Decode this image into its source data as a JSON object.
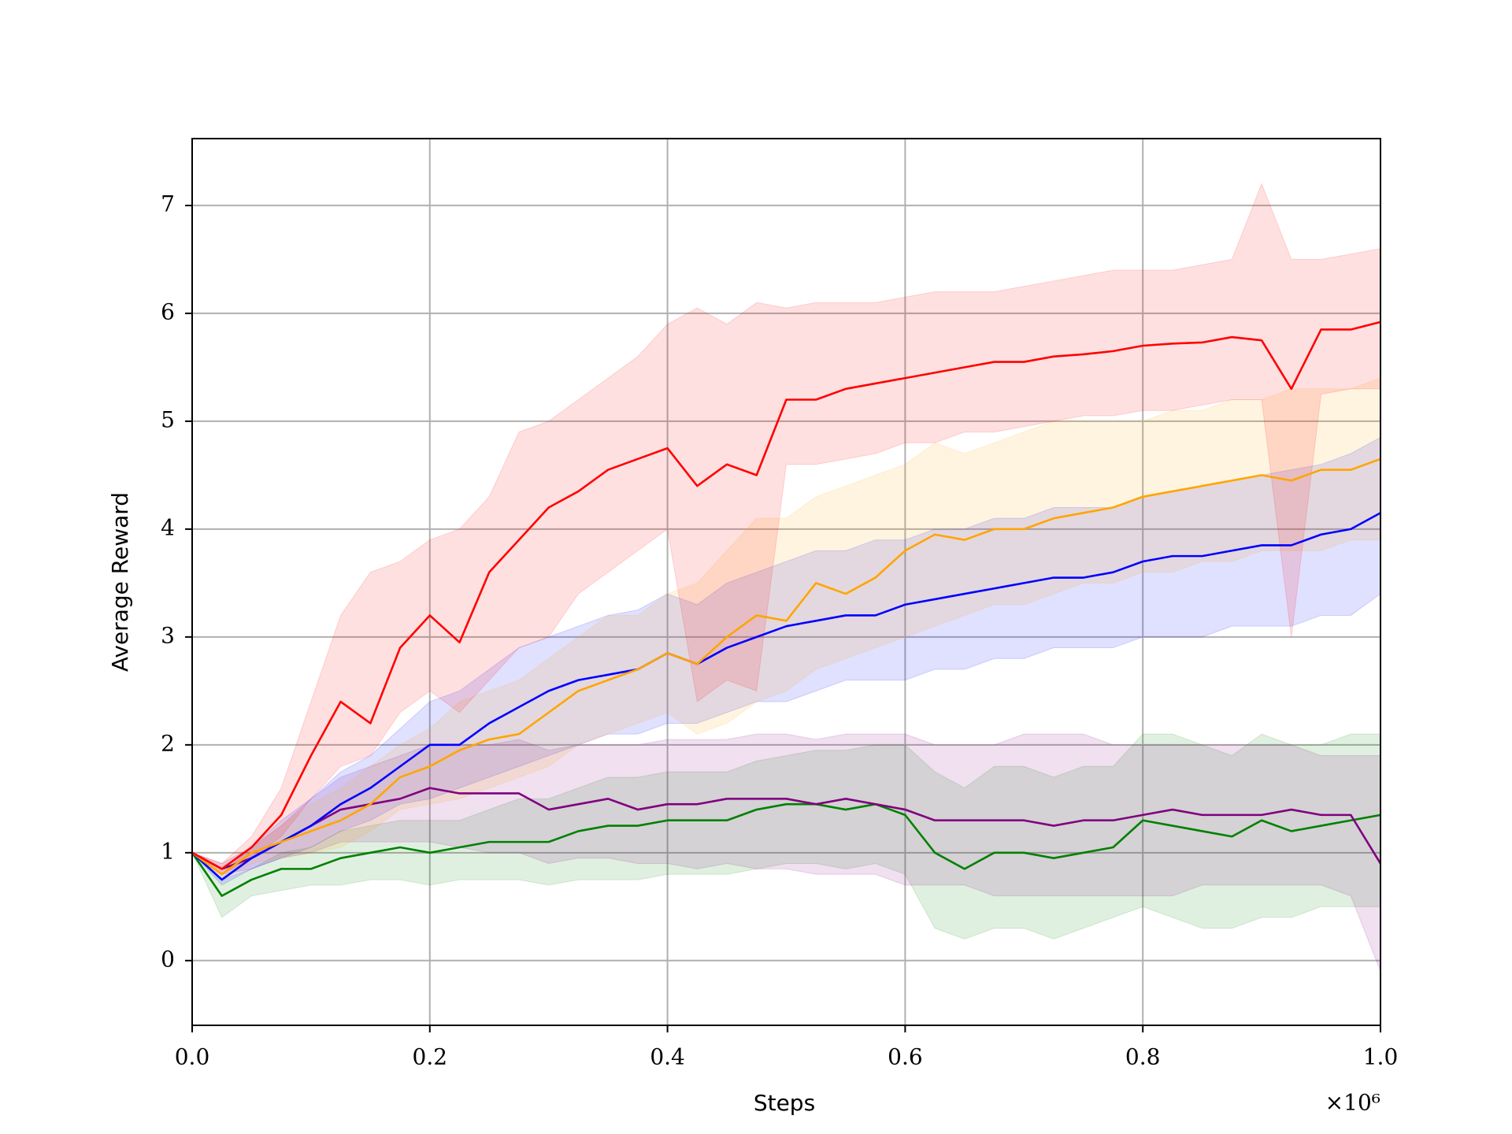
{
  "chart_data": {
    "type": "line",
    "xlabel": "Steps",
    "ylabel": "Average Reward",
    "x_multiplier_label": "×10⁶",
    "xlim": [
      0,
      1.0
    ],
    "ylim": [
      -0.6,
      7.62
    ],
    "xticks": [
      {
        "value": 0,
        "label": "0.0"
      },
      {
        "value": 0.2,
        "label": "0.2"
      },
      {
        "value": 0.4,
        "label": "0.4"
      },
      {
        "value": 0.6,
        "label": "0.6"
      },
      {
        "value": 0.8,
        "label": "0.8"
      },
      {
        "value": 1.0,
        "label": "1.0"
      }
    ],
    "yticks": [
      0,
      1,
      2,
      3,
      4,
      5,
      6,
      7
    ],
    "grid": true,
    "x": [
      0,
      0.025,
      0.05,
      0.075,
      0.1,
      0.125,
      0.15,
      0.175,
      0.2,
      0.225,
      0.25,
      0.275,
      0.3,
      0.325,
      0.35,
      0.375,
      0.4,
      0.425,
      0.45,
      0.475,
      0.5,
      0.525,
      0.55,
      0.575,
      0.6,
      0.625,
      0.65,
      0.675,
      0.7,
      0.725,
      0.75,
      0.775,
      0.8,
      0.825,
      0.85,
      0.875,
      0.9,
      0.925,
      0.95,
      0.975,
      1.0
    ],
    "series": [
      {
        "color": "#008000",
        "values": [
          1.0,
          0.6,
          0.75,
          0.85,
          0.85,
          0.95,
          1.0,
          1.05,
          1.0,
          1.05,
          1.1,
          1.1,
          1.1,
          1.2,
          1.25,
          1.25,
          1.3,
          1.3,
          1.3,
          1.4,
          1.45,
          1.45,
          1.4,
          1.45,
          1.35,
          1.0,
          0.85,
          1.0,
          1.0,
          0.95,
          1.0,
          1.05,
          1.3,
          1.25,
          1.2,
          1.15,
          1.3,
          1.2,
          1.25,
          1.3,
          1.35
        ],
        "lower": [
          1.0,
          0.4,
          0.6,
          0.65,
          0.7,
          0.7,
          0.75,
          0.75,
          0.7,
          0.75,
          0.75,
          0.75,
          0.7,
          0.75,
          0.75,
          0.75,
          0.8,
          0.8,
          0.8,
          0.85,
          0.9,
          0.9,
          0.85,
          0.9,
          0.8,
          0.3,
          0.2,
          0.3,
          0.3,
          0.2,
          0.3,
          0.4,
          0.5,
          0.4,
          0.3,
          0.3,
          0.4,
          0.4,
          0.5,
          0.5,
          0.5
        ],
        "upper": [
          1.0,
          0.75,
          0.85,
          1.0,
          1.05,
          1.2,
          1.25,
          1.3,
          1.3,
          1.3,
          1.4,
          1.5,
          1.5,
          1.6,
          1.7,
          1.7,
          1.75,
          1.75,
          1.75,
          1.85,
          1.9,
          1.95,
          1.95,
          2.0,
          2.0,
          1.75,
          1.6,
          1.8,
          1.8,
          1.7,
          1.8,
          1.8,
          2.1,
          2.1,
          2.0,
          1.9,
          2.1,
          2.0,
          2.0,
          2.1,
          2.1
        ]
      },
      {
        "color": "#800080",
        "values": [
          1.0,
          0.85,
          0.95,
          1.1,
          1.25,
          1.4,
          1.45,
          1.5,
          1.6,
          1.55,
          1.55,
          1.55,
          1.4,
          1.45,
          1.5,
          1.4,
          1.45,
          1.45,
          1.5,
          1.5,
          1.5,
          1.45,
          1.5,
          1.45,
          1.4,
          1.3,
          1.3,
          1.3,
          1.3,
          1.25,
          1.3,
          1.3,
          1.35,
          1.4,
          1.35,
          1.35,
          1.35,
          1.4,
          1.35,
          1.35,
          0.9
        ],
        "lower": [
          1.0,
          0.8,
          0.85,
          0.95,
          1.0,
          1.1,
          1.1,
          1.1,
          1.1,
          1.05,
          1.0,
          1.0,
          0.9,
          0.95,
          0.95,
          0.9,
          0.9,
          0.85,
          0.9,
          0.85,
          0.85,
          0.8,
          0.8,
          0.8,
          0.7,
          0.7,
          0.7,
          0.6,
          0.6,
          0.6,
          0.6,
          0.6,
          0.6,
          0.6,
          0.7,
          0.7,
          0.7,
          0.7,
          0.7,
          0.6,
          -0.1
        ],
        "upper": [
          1.0,
          0.9,
          1.05,
          1.25,
          1.5,
          1.7,
          1.8,
          1.9,
          2.0,
          2.0,
          2.0,
          2.05,
          1.95,
          2.0,
          2.0,
          2.0,
          2.05,
          2.05,
          2.05,
          2.1,
          2.1,
          2.05,
          2.1,
          2.1,
          2.1,
          2.0,
          2.0,
          2.0,
          2.1,
          2.1,
          2.1,
          2.0,
          2.0,
          2.0,
          2.0,
          2.0,
          2.0,
          2.0,
          1.9,
          1.9,
          1.9
        ]
      },
      {
        "color": "#0000ff",
        "values": [
          1.0,
          0.75,
          0.95,
          1.1,
          1.25,
          1.45,
          1.6,
          1.8,
          2.0,
          2.0,
          2.2,
          2.35,
          2.5,
          2.6,
          2.65,
          2.7,
          2.85,
          2.75,
          2.9,
          3.0,
          3.1,
          3.15,
          3.2,
          3.2,
          3.3,
          3.35,
          3.4,
          3.45,
          3.5,
          3.55,
          3.55,
          3.6,
          3.7,
          3.75,
          3.75,
          3.8,
          3.85,
          3.85,
          3.95,
          4.0,
          4.15
        ],
        "lower": [
          1.0,
          0.7,
          0.85,
          0.95,
          1.05,
          1.2,
          1.3,
          1.45,
          1.5,
          1.6,
          1.7,
          1.8,
          1.9,
          2.0,
          2.1,
          2.1,
          2.2,
          2.2,
          2.3,
          2.4,
          2.4,
          2.5,
          2.6,
          2.6,
          2.6,
          2.7,
          2.7,
          2.8,
          2.8,
          2.9,
          2.9,
          2.9,
          3.0,
          3.0,
          3.0,
          3.1,
          3.1,
          3.1,
          3.2,
          3.2,
          3.4
        ],
        "upper": [
          1.0,
          0.8,
          1.05,
          1.3,
          1.5,
          1.75,
          1.9,
          2.15,
          2.4,
          2.5,
          2.7,
          2.9,
          3.0,
          3.1,
          3.2,
          3.25,
          3.4,
          3.3,
          3.5,
          3.6,
          3.7,
          3.8,
          3.8,
          3.9,
          3.9,
          4.0,
          4.0,
          4.1,
          4.1,
          4.2,
          4.2,
          4.2,
          4.3,
          4.35,
          4.4,
          4.45,
          4.5,
          4.55,
          4.6,
          4.7,
          4.85
        ]
      },
      {
        "color": "#ffa500",
        "values": [
          1.0,
          0.8,
          1.0,
          1.1,
          1.2,
          1.3,
          1.45,
          1.7,
          1.8,
          1.95,
          2.05,
          2.1,
          2.3,
          2.5,
          2.6,
          2.7,
          2.85,
          2.75,
          3.0,
          3.2,
          3.15,
          3.5,
          3.4,
          3.55,
          3.8,
          3.95,
          3.9,
          4.0,
          4.0,
          4.1,
          4.15,
          4.2,
          4.3,
          4.35,
          4.4,
          4.45,
          4.5,
          4.45,
          4.55,
          4.55,
          4.65
        ],
        "lower": [
          1.0,
          0.75,
          0.9,
          0.95,
          1.0,
          1.05,
          1.2,
          1.4,
          1.45,
          1.5,
          1.6,
          1.7,
          1.8,
          2.0,
          2.1,
          2.2,
          2.3,
          2.1,
          2.2,
          2.4,
          2.5,
          2.7,
          2.8,
          2.9,
          3.0,
          3.1,
          3.2,
          3.3,
          3.3,
          3.4,
          3.5,
          3.5,
          3.6,
          3.6,
          3.7,
          3.7,
          3.8,
          3.8,
          3.8,
          3.9,
          3.9
        ],
        "upper": [
          1.0,
          0.85,
          1.05,
          1.25,
          1.45,
          1.6,
          1.8,
          2.0,
          2.15,
          2.4,
          2.5,
          2.6,
          2.8,
          3.0,
          3.2,
          3.2,
          3.4,
          3.5,
          3.8,
          4.1,
          4.1,
          4.3,
          4.4,
          4.5,
          4.6,
          4.8,
          4.7,
          4.8,
          4.9,
          5.0,
          5.0,
          5.0,
          5.0,
          5.1,
          5.1,
          5.2,
          5.2,
          5.3,
          5.3,
          5.3,
          5.4
        ]
      },
      {
        "color": "#ff0000",
        "values": [
          1.0,
          0.85,
          1.05,
          1.35,
          1.9,
          2.4,
          2.2,
          2.9,
          3.2,
          2.95,
          3.6,
          3.9,
          4.2,
          4.35,
          4.55,
          4.65,
          4.75,
          4.4,
          4.6,
          4.5,
          5.2,
          5.2,
          5.3,
          5.35,
          5.4,
          5.45,
          5.5,
          5.55,
          5.55,
          5.6,
          5.62,
          5.65,
          5.7,
          5.72,
          5.73,
          5.78,
          5.75,
          5.3,
          5.85,
          5.85,
          5.92
        ],
        "lower": [
          1.0,
          0.8,
          0.95,
          1.15,
          1.5,
          1.8,
          1.9,
          2.3,
          2.5,
          2.3,
          2.6,
          2.9,
          3.0,
          3.4,
          3.6,
          3.8,
          4.0,
          2.4,
          2.6,
          2.5,
          4.6,
          4.6,
          4.65,
          4.7,
          4.8,
          4.8,
          4.9,
          4.9,
          4.95,
          5.0,
          5.05,
          5.05,
          5.1,
          5.1,
          5.15,
          5.2,
          5.2,
          3.0,
          5.25,
          5.3,
          5.3
        ],
        "upper": [
          1.0,
          0.9,
          1.15,
          1.6,
          2.4,
          3.2,
          3.6,
          3.7,
          3.9,
          4.0,
          4.3,
          4.9,
          5.0,
          5.2,
          5.4,
          5.6,
          5.9,
          6.05,
          5.9,
          6.1,
          6.05,
          6.1,
          6.1,
          6.1,
          6.15,
          6.2,
          6.2,
          6.2,
          6.25,
          6.3,
          6.35,
          6.4,
          6.4,
          6.4,
          6.45,
          6.5,
          7.2,
          6.5,
          6.5,
          6.55,
          6.6
        ]
      }
    ]
  }
}
